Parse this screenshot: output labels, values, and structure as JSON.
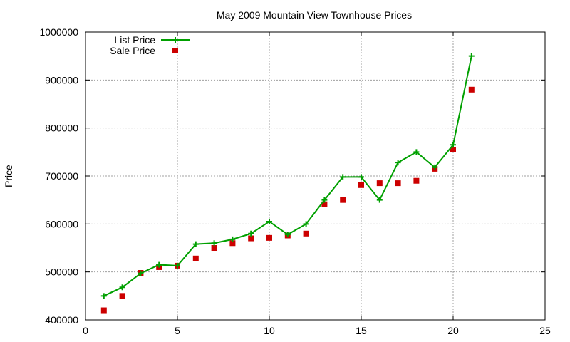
{
  "chart_data": {
    "type": "line",
    "title": "May 2009 Mountain View Townhouse Prices",
    "xlabel": "",
    "ylabel": "Price",
    "xlim": [
      0,
      25
    ],
    "ylim": [
      400000,
      1000000
    ],
    "xticks": [
      0,
      5,
      10,
      15,
      20,
      25
    ],
    "yticks": [
      400000,
      500000,
      600000,
      700000,
      800000,
      900000,
      1000000
    ],
    "x_tick_labels": [
      "0",
      "5",
      "10",
      "15",
      "20",
      "25"
    ],
    "y_tick_labels": [
      "400000",
      "500000",
      "600000",
      "700000",
      "800000",
      "900000",
      "1000000"
    ],
    "grid": true,
    "legend_position": "top-left",
    "series": [
      {
        "name": "List Price",
        "kind": "line-with-markers",
        "marker": "plus",
        "color": "#00a000",
        "x": [
          1,
          2,
          3,
          4,
          5,
          6,
          7,
          8,
          9,
          10,
          11,
          12,
          13,
          14,
          15,
          16,
          17,
          18,
          19,
          20,
          21
        ],
        "y": [
          450000,
          468000,
          497000,
          515000,
          513000,
          558000,
          560000,
          568000,
          580000,
          605000,
          578000,
          600000,
          650000,
          698000,
          698000,
          650000,
          728000,
          750000,
          718000,
          765000,
          950000
        ]
      },
      {
        "name": "Sale Price",
        "kind": "points",
        "marker": "square",
        "color": "#cc0000",
        "x": [
          1,
          2,
          3,
          4,
          5,
          6,
          7,
          8,
          9,
          10,
          11,
          12,
          13,
          14,
          15,
          16,
          17,
          18,
          19,
          20,
          21
        ],
        "y": [
          420000,
          450000,
          498000,
          510000,
          513000,
          528000,
          550000,
          560000,
          570000,
          571000,
          576000,
          580000,
          641000,
          650000,
          681000,
          685000,
          685000,
          690000,
          715000,
          755000,
          880000
        ]
      }
    ]
  }
}
